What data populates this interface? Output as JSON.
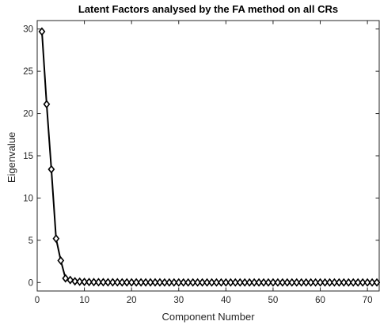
{
  "chart_data": {
    "type": "line",
    "title": "Latent Factors analysed by the FA method on all CRs",
    "xlabel": "Component Number",
    "ylabel": "Eigenvalue",
    "xlim": [
      0,
      72.5
    ],
    "ylim": [
      -1,
      31
    ],
    "xticks": [
      0,
      10,
      20,
      30,
      40,
      50,
      60,
      70
    ],
    "yticks": [
      0,
      5,
      10,
      15,
      20,
      25,
      30
    ],
    "grid": false,
    "marker": "diamond",
    "line_color": "#000000",
    "series": [
      {
        "x": [
          1,
          2,
          3,
          4,
          5,
          6,
          7,
          8,
          9,
          10,
          11,
          12,
          13,
          14,
          15,
          16,
          17,
          18,
          19,
          20,
          21,
          22,
          23,
          24,
          25,
          26,
          27,
          28,
          29,
          30,
          31,
          32,
          33,
          34,
          35,
          36,
          37,
          38,
          39,
          40,
          41,
          42,
          43,
          44,
          45,
          46,
          47,
          48,
          49,
          50,
          51,
          52,
          53,
          54,
          55,
          56,
          57,
          58,
          59,
          60,
          61,
          62,
          63,
          64,
          65,
          66,
          67,
          68,
          69,
          70,
          71,
          72
        ],
        "values": [
          29.7,
          21.1,
          13.4,
          5.2,
          2.6,
          0.5,
          0.3,
          0.15,
          0.1,
          0.08,
          0.06,
          0.05,
          0.04,
          0.04,
          0.03,
          0.03,
          0.03,
          0.02,
          0.02,
          0.02,
          0.02,
          0.02,
          0.02,
          0.02,
          0.02,
          0.02,
          0.01,
          0.01,
          0.01,
          0.01,
          0.01,
          0.01,
          0.01,
          0.01,
          0.01,
          0.01,
          0.01,
          0.01,
          0.01,
          0.01,
          0.01,
          0.01,
          0.01,
          0.01,
          0.01,
          0.01,
          0.01,
          0.01,
          0.01,
          0.01,
          0.01,
          0.01,
          0.01,
          0.01,
          0.01,
          0.01,
          0.01,
          0.01,
          0.01,
          0.01,
          0.01,
          0.01,
          0.01,
          0.01,
          0.01,
          0.01,
          0.01,
          0.01,
          0.01,
          0.01,
          0.01,
          0.01
        ]
      }
    ]
  }
}
